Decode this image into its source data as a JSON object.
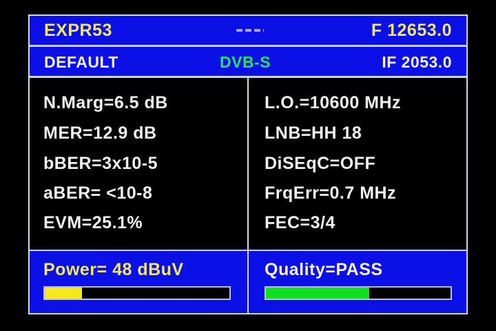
{
  "header": {
    "channel": "EXPR53",
    "frequency": "F 12653.0"
  },
  "subheader": {
    "preset": "DEFAULT",
    "standard": "DVB-S",
    "if_freq": "IF 2053.0"
  },
  "left_params": [
    "N.Marg=6.5 dB",
    "MER=12.9 dB",
    "bBER=3x10-5",
    "aBER= <10-8",
    "EVM=25.1%"
  ],
  "right_params": [
    "L.O.=10600 MHz",
    "LNB=HH 18",
    "DiSEqC=OFF",
    "FrqErr=0.7 MHz",
    "FEC=3/4"
  ],
  "power": {
    "label": "Power= 48 dBuV",
    "level_percent": 20,
    "color": "#f7e81a"
  },
  "quality": {
    "label": "Quality=PASS",
    "level_percent": 56,
    "color": "#10e020"
  },
  "colors": {
    "panel_blue": "#0a10e6",
    "border": "#cfd6f0",
    "title_yellow": "#f3ea5a",
    "standard_green": "#27e35a"
  }
}
